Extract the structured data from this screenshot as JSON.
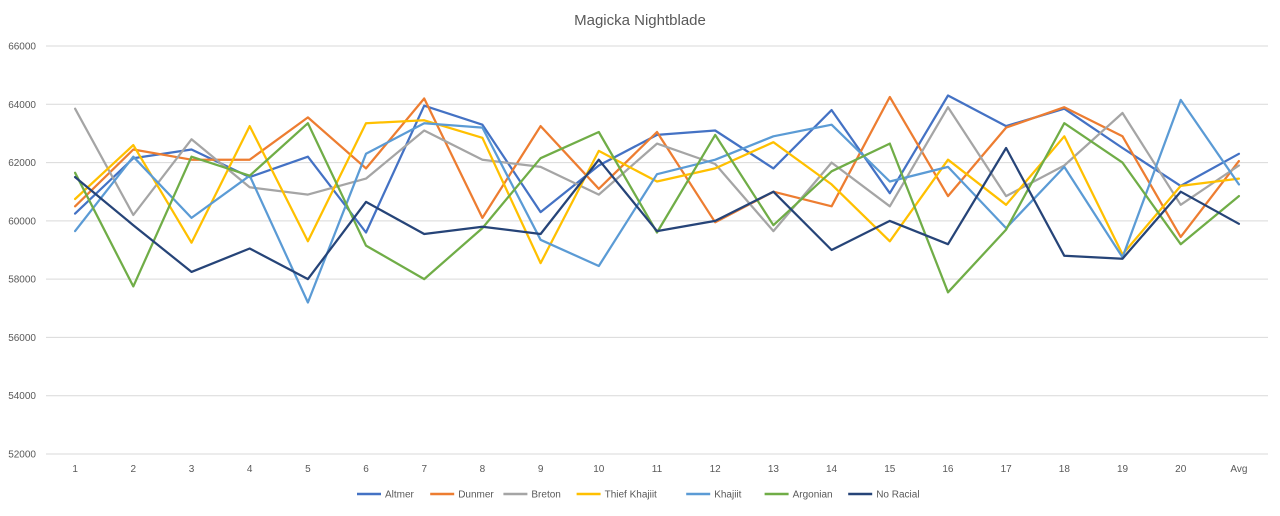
{
  "chart_data": {
    "type": "line",
    "title": "Magicka Nightblade",
    "xlabel": "",
    "ylabel": "",
    "categories": [
      "1",
      "2",
      "3",
      "4",
      "5",
      "6",
      "7",
      "8",
      "9",
      "10",
      "11",
      "12",
      "13",
      "14",
      "15",
      "16",
      "17",
      "18",
      "19",
      "20",
      "Avg"
    ],
    "ylim": [
      52000,
      66000
    ],
    "yticks": [
      52000,
      54000,
      56000,
      58000,
      60000,
      62000,
      64000,
      66000
    ],
    "grid": true,
    "legend_position": "bottom",
    "series": [
      {
        "name": "Altmer",
        "color": "#4472C4",
        "values": [
          60250,
          62150,
          62450,
          61500,
          62200,
          59600,
          63950,
          63300,
          60300,
          61900,
          62950,
          63100,
          61800,
          63800,
          60950,
          64300,
          63250,
          63850,
          62500,
          61200,
          62300
        ]
      },
      {
        "name": "Dunmer",
        "color": "#ED7D31",
        "values": [
          60500,
          62450,
          62100,
          62100,
          63550,
          61800,
          64200,
          60100,
          63250,
          61100,
          63050,
          59950,
          61000,
          60500,
          64250,
          60850,
          63200,
          63900,
          62900,
          59450,
          62050
        ]
      },
      {
        "name": "Breton",
        "color": "#A5A5A5",
        "values": [
          63850,
          60200,
          62800,
          61150,
          60900,
          61450,
          63100,
          62100,
          61850,
          60900,
          62650,
          61950,
          59650,
          62000,
          60500,
          63900,
          60850,
          61900,
          63700,
          60550,
          61900
        ]
      },
      {
        "name": "Thief Khajiit",
        "color": "#FFC000",
        "values": [
          60750,
          62600,
          59250,
          63250,
          59300,
          63350,
          63450,
          62850,
          58550,
          62400,
          61350,
          61800,
          62700,
          61250,
          59300,
          62100,
          60550,
          62900,
          58850,
          61200,
          61450
        ]
      },
      {
        "name": "Khajiit",
        "color": "#5B9BD5",
        "values": [
          59650,
          62200,
          60100,
          61550,
          57200,
          62300,
          63350,
          63200,
          59350,
          58450,
          61600,
          62100,
          62900,
          63300,
          61350,
          61850,
          59750,
          61850,
          58750,
          64150,
          61250
        ]
      },
      {
        "name": "Argonian",
        "color": "#70AD47",
        "values": [
          61650,
          57750,
          62200,
          61550,
          63350,
          59150,
          58000,
          59750,
          62150,
          63050,
          59600,
          62950,
          59850,
          61700,
          62650,
          57550,
          59700,
          63350,
          62000,
          59200,
          60850
        ]
      },
      {
        "name": "No Racial",
        "color": "#264478",
        "values": [
          61500,
          59850,
          58250,
          59050,
          58000,
          60650,
          59550,
          59800,
          59550,
          62100,
          59650,
          60000,
          61000,
          59000,
          60000,
          59200,
          62500,
          58800,
          58700,
          61000,
          59900
        ]
      }
    ]
  }
}
